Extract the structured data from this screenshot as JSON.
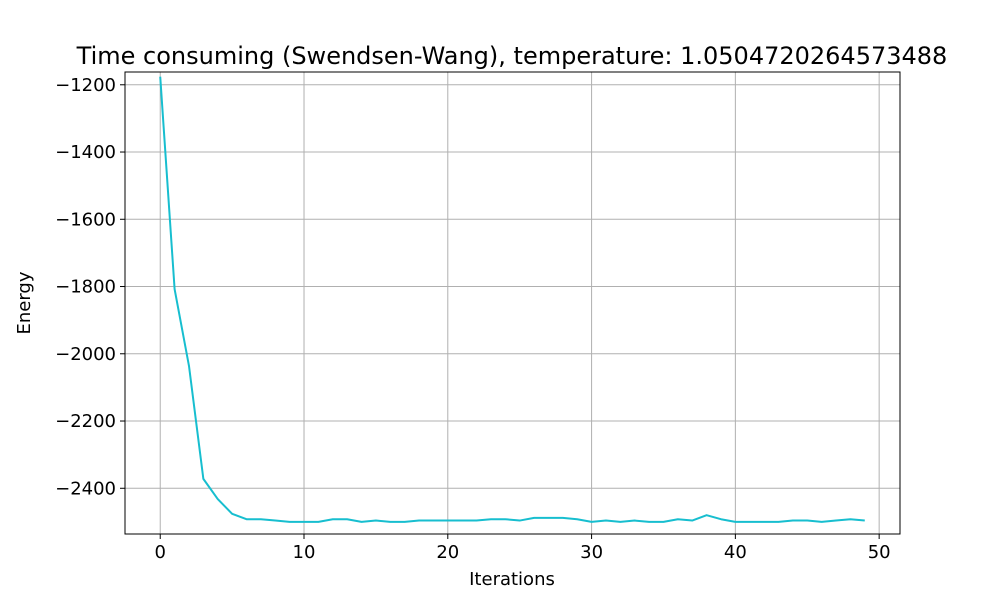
{
  "chart_data": {
    "type": "line",
    "title": "Time consuming (Swendsen-Wang), temperature: 1.0504720264573488",
    "xlabel": "Iterations",
    "ylabel": "Energy",
    "xlim": [
      -2.45,
      51.45
    ],
    "ylim": [
      -2536,
      -1162
    ],
    "xticks": [
      0,
      10,
      20,
      30,
      40,
      50
    ],
    "xtick_labels": [
      "0",
      "10",
      "20",
      "30",
      "40",
      "50"
    ],
    "yticks": [
      -2400,
      -2200,
      -2000,
      -1800,
      -1600,
      -1400,
      -1200
    ],
    "ytick_labels": [
      "−2400",
      "−2200",
      "−2000",
      "−1800",
      "−1600",
      "−1400",
      "−1200"
    ],
    "grid": true,
    "series": [
      {
        "name": "Energy",
        "color": "#17becf",
        "x": [
          0,
          1,
          2,
          3,
          4,
          5,
          6,
          7,
          8,
          9,
          10,
          11,
          12,
          13,
          14,
          15,
          16,
          17,
          18,
          19,
          20,
          21,
          22,
          23,
          24,
          25,
          26,
          27,
          28,
          29,
          30,
          31,
          32,
          33,
          34,
          35,
          36,
          37,
          38,
          39,
          40,
          41,
          42,
          43,
          44,
          45,
          46,
          47,
          48,
          49
        ],
        "values": [
          -1176,
          -1808,
          -2036,
          -2372,
          -2432,
          -2476,
          -2492,
          -2492,
          -2496,
          -2500,
          -2500,
          -2500,
          -2492,
          -2492,
          -2500,
          -2496,
          -2500,
          -2500,
          -2496,
          -2496,
          -2496,
          -2496,
          -2496,
          -2492,
          -2492,
          -2496,
          -2488,
          -2488,
          -2488,
          -2492,
          -2500,
          -2496,
          -2500,
          -2496,
          -2500,
          -2500,
          -2492,
          -2496,
          -2480,
          -2492,
          -2500,
          -2500,
          -2500,
          -2500,
          -2496,
          -2496,
          -2500,
          -2496,
          -2492,
          -2496
        ]
      }
    ]
  }
}
